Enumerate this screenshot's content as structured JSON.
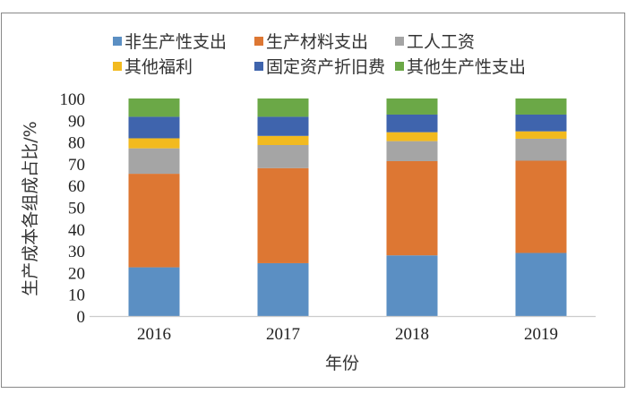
{
  "chart_data": {
    "type": "bar",
    "stacked": true,
    "title": "",
    "xlabel": "年份",
    "ylabel": "生产成本各组成占比/%",
    "ylim": [
      0,
      100
    ],
    "yticks": [
      0,
      10,
      20,
      30,
      40,
      50,
      60,
      70,
      80,
      90,
      100
    ],
    "grid": false,
    "legend_position": "top",
    "categories": [
      "2016",
      "2017",
      "2018",
      "2019"
    ],
    "series": [
      {
        "name": "非生产性支出",
        "color": "#5B8FC3",
        "values": [
          22.4,
          24.3,
          27.9,
          29.0
        ]
      },
      {
        "name": "生产材料支出",
        "color": "#DD7733",
        "values": [
          43.0,
          43.7,
          43.3,
          42.4
        ]
      },
      {
        "name": "工人工资",
        "color": "#A5A5A5",
        "values": [
          11.7,
          10.6,
          9.2,
          10.1
        ]
      },
      {
        "name": "其他福利",
        "color": "#F2BA1F",
        "values": [
          4.6,
          4.2,
          4.1,
          3.4
        ]
      },
      {
        "name": "固定资产折旧费",
        "color": "#3F64AD",
        "values": [
          9.9,
          8.8,
          8.1,
          7.7
        ]
      },
      {
        "name": "其他生产性支出",
        "color": "#6BA847",
        "values": [
          8.4,
          8.4,
          7.4,
          7.4
        ]
      }
    ]
  }
}
